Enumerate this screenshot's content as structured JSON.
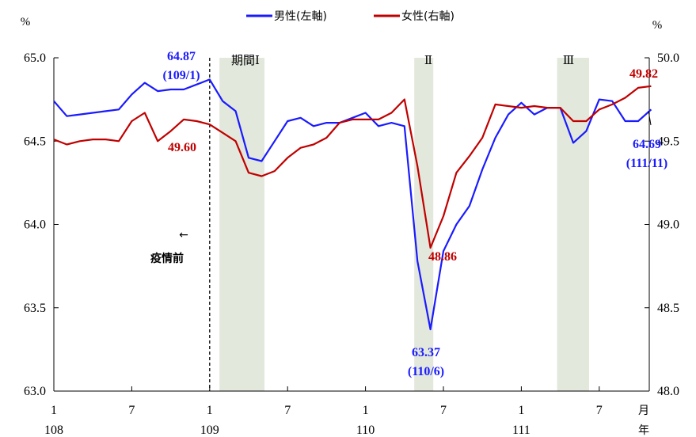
{
  "chart_data": {
    "type": "line",
    "title": "",
    "legend": {
      "position": "top-center",
      "entries": [
        {
          "label": "男性(左軸)",
          "color": "#1a1aff"
        },
        {
          "label": "女性(右軸)",
          "color": "#c00000"
        }
      ]
    },
    "y_left": {
      "unit": "%",
      "ylim": [
        63.0,
        65.0
      ],
      "ticks": [
        "63.0",
        "63.5",
        "64.0",
        "64.5",
        "65.0"
      ]
    },
    "y_right": {
      "unit": "%",
      "ylim": [
        48.0,
        50.0
      ],
      "ticks": [
        "48.0",
        "48.5",
        "49.0",
        "49.5",
        "50.0"
      ]
    },
    "x_axis": {
      "month_ticks": [
        {
          "month": "1",
          "year": "108"
        },
        {
          "month": "7",
          "year": ""
        },
        {
          "month": "1",
          "year": "109"
        },
        {
          "month": "7",
          "year": ""
        },
        {
          "month": "1",
          "year": "110"
        },
        {
          "month": "7",
          "year": ""
        },
        {
          "month": "1",
          "year": "111"
        },
        {
          "month": "7",
          "year": ""
        }
      ],
      "month_unit": "月",
      "year_unit": "年"
    },
    "x": [
      "108/1",
      "108/2",
      "108/3",
      "108/4",
      "108/5",
      "108/6",
      "108/7",
      "108/8",
      "108/9",
      "108/10",
      "108/11",
      "108/12",
      "109/1",
      "109/2",
      "109/3",
      "109/4",
      "109/5",
      "109/6",
      "109/7",
      "109/8",
      "109/9",
      "109/10",
      "109/11",
      "109/12",
      "110/1",
      "110/2",
      "110/3",
      "110/4",
      "110/5",
      "110/6",
      "110/7",
      "110/8",
      "110/9",
      "110/10",
      "110/11",
      "110/12",
      "111/1",
      "111/2",
      "111/3",
      "111/4",
      "111/5",
      "111/6",
      "111/7",
      "111/8",
      "111/9",
      "111/10",
      "111/11"
    ],
    "series": [
      {
        "name": "男性(左軸)",
        "axis": "left",
        "color": "#1a1aff",
        "values": [
          64.74,
          64.65,
          64.66,
          64.67,
          64.68,
          64.69,
          64.78,
          64.85,
          64.8,
          64.81,
          64.81,
          64.84,
          64.87,
          64.74,
          64.68,
          64.4,
          64.38,
          64.5,
          64.62,
          64.64,
          64.59,
          64.61,
          64.61,
          64.64,
          64.67,
          64.59,
          64.61,
          64.59,
          63.78,
          63.37,
          63.84,
          64.0,
          64.11,
          64.33,
          64.52,
          64.66,
          64.73,
          64.66,
          64.7,
          64.7,
          64.49,
          64.56,
          64.75,
          64.74,
          64.62,
          64.62,
          64.69
        ]
      },
      {
        "name": "女性(右軸)",
        "axis": "right",
        "color": "#c00000",
        "values": [
          49.51,
          49.48,
          49.5,
          49.51,
          49.51,
          49.5,
          49.62,
          49.67,
          49.5,
          49.56,
          49.63,
          49.62,
          49.6,
          49.55,
          49.5,
          49.31,
          49.29,
          49.32,
          49.4,
          49.46,
          49.48,
          49.52,
          49.61,
          49.63,
          49.63,
          49.63,
          49.67,
          49.75,
          49.35,
          48.86,
          49.05,
          49.31,
          49.41,
          49.52,
          49.72,
          49.71,
          49.7,
          49.71,
          49.7,
          49.7,
          49.62,
          49.62,
          49.69,
          49.72,
          49.76,
          49.82,
          49.83
        ]
      }
    ],
    "shaded_periods": [
      {
        "label": "期間Ⅰ",
        "start": "109/2",
        "end": "109/4"
      },
      {
        "label": "Ⅱ",
        "start": "110/5",
        "end": "110/5"
      },
      {
        "label": "Ⅲ",
        "start": "111/4",
        "end": "111/5"
      }
    ],
    "reference_line": {
      "at": "109/1",
      "style": "dashed",
      "label": "疫情前",
      "arrow": "←"
    },
    "annotations": [
      {
        "value": "64.87",
        "date": "(109/1)",
        "series": "男性(左軸)",
        "color": "#1a1aff"
      },
      {
        "value": "49.60",
        "series": "女性(右軸)",
        "color": "#c00000"
      },
      {
        "value": "48.86",
        "series": "女性(右軸)",
        "color": "#c00000"
      },
      {
        "value": "63.37",
        "date": "(110/6)",
        "series": "男性(左軸)",
        "color": "#1a1aff"
      },
      {
        "value": "49.82",
        "series": "女性(右軸)",
        "color": "#c00000"
      },
      {
        "value": "64.69",
        "date": "(111/11)",
        "series": "男性(左軸)",
        "color": "#1a1aff"
      }
    ],
    "grid": false
  }
}
